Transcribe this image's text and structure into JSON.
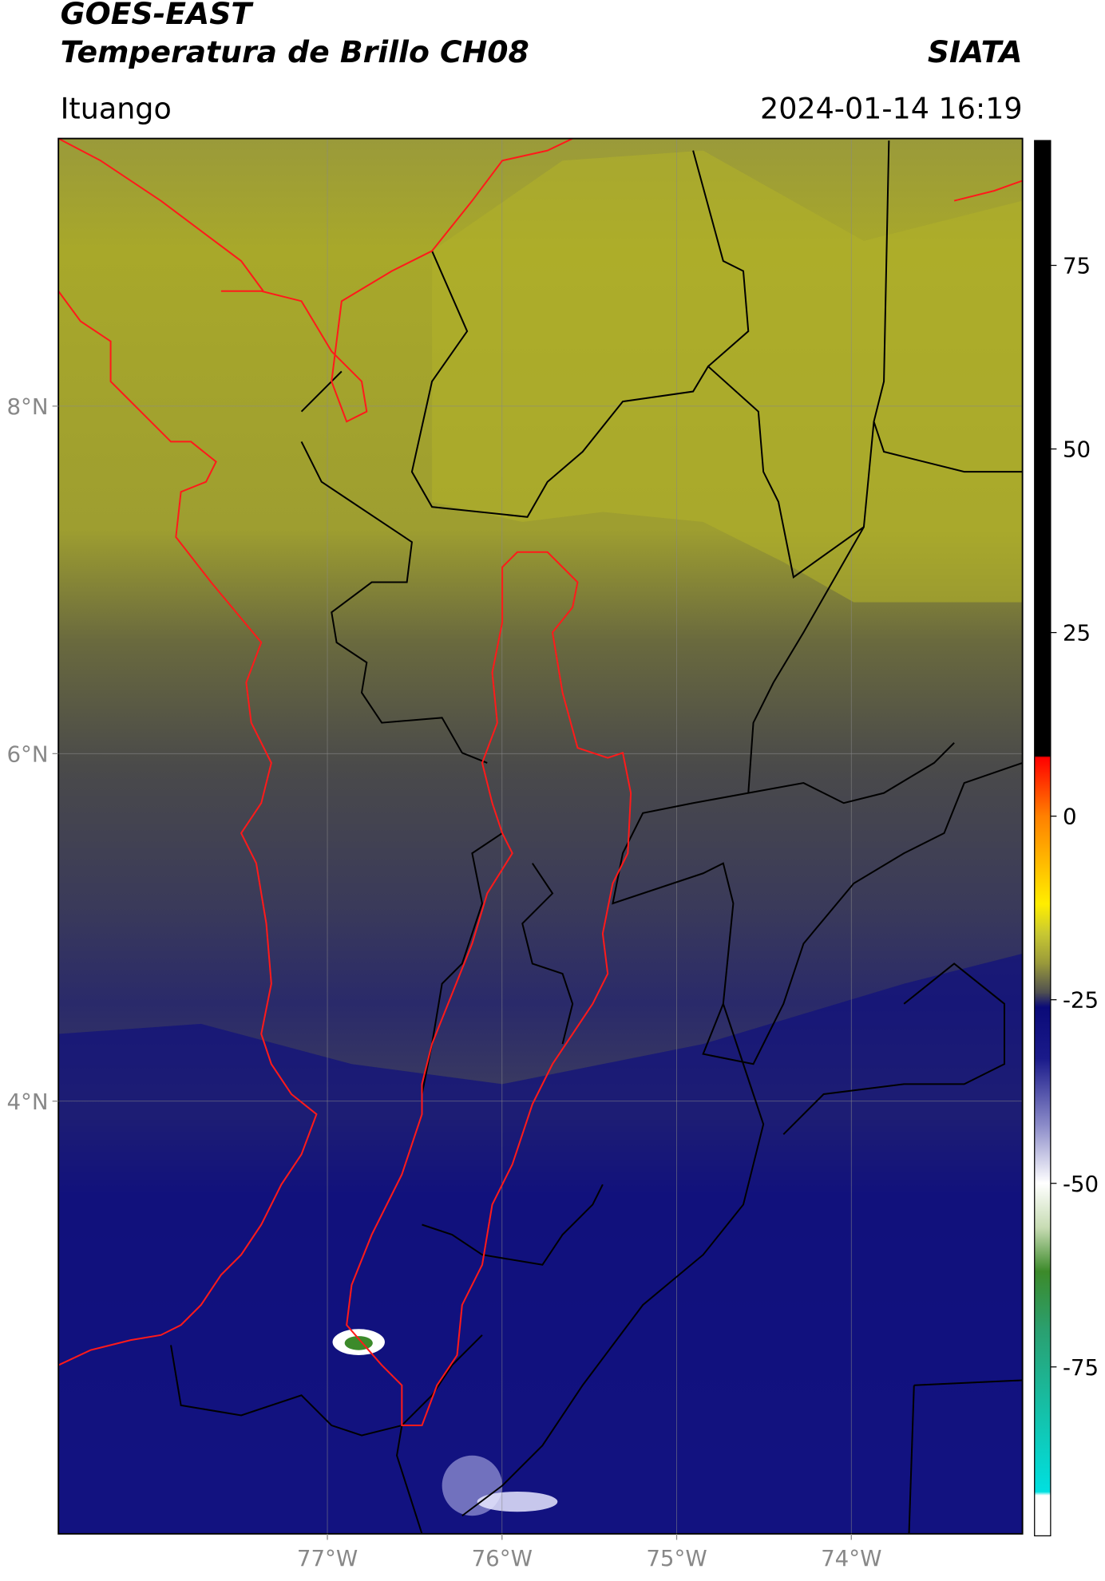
{
  "header": {
    "title": "GOES-EAST",
    "subtitle": "Temperatura de Brillo CH08",
    "source": "SIATA",
    "location": "Ituango",
    "datetime": "2024-01-14 16:19"
  },
  "map": {
    "xlim": [
      -78.54,
      -73.02
    ],
    "ylim": [
      1.51,
      9.54
    ],
    "xticks": [
      {
        "value": -77,
        "label": "77°W"
      },
      {
        "value": -76,
        "label": "76°W"
      },
      {
        "value": -75,
        "label": "75°W"
      },
      {
        "value": -74,
        "label": "74°W"
      }
    ],
    "yticks": [
      {
        "value": 8,
        "label": "8°N"
      },
      {
        "value": 6,
        "label": "6°N"
      },
      {
        "value": 4,
        "label": "4°N"
      }
    ],
    "grid": true
  },
  "colorbar": {
    "lim": [
      -98,
      92
    ],
    "ticks": [
      75,
      50,
      25,
      0,
      -25,
      -50,
      -75
    ],
    "stops": [
      {
        "value": 92,
        "color": "#000000"
      },
      {
        "value": 8.2,
        "color": "#000000"
      },
      {
        "value": 8,
        "color": "#ff0000"
      },
      {
        "value": 0,
        "color": "#ff8000"
      },
      {
        "value": -12,
        "color": "#ffee00"
      },
      {
        "value": -16,
        "color": "#c8c832"
      },
      {
        "value": -20,
        "color": "#9a9a3a"
      },
      {
        "value": -24,
        "color": "#505050"
      },
      {
        "value": -26,
        "color": "#0a0a78"
      },
      {
        "value": -33,
        "color": "#1a1a8a"
      },
      {
        "value": -42,
        "color": "#8a8ac8"
      },
      {
        "value": -50,
        "color": "#ffffff"
      },
      {
        "value": -56,
        "color": "#c8dcb4"
      },
      {
        "value": -62,
        "color": "#3c8a2a"
      },
      {
        "value": -70,
        "color": "#2aa070"
      },
      {
        "value": -92,
        "color": "#00e0e0"
      },
      {
        "value": -92.5,
        "color": "#ffffff"
      },
      {
        "value": -98,
        "color": "#ffffff"
      }
    ]
  }
}
